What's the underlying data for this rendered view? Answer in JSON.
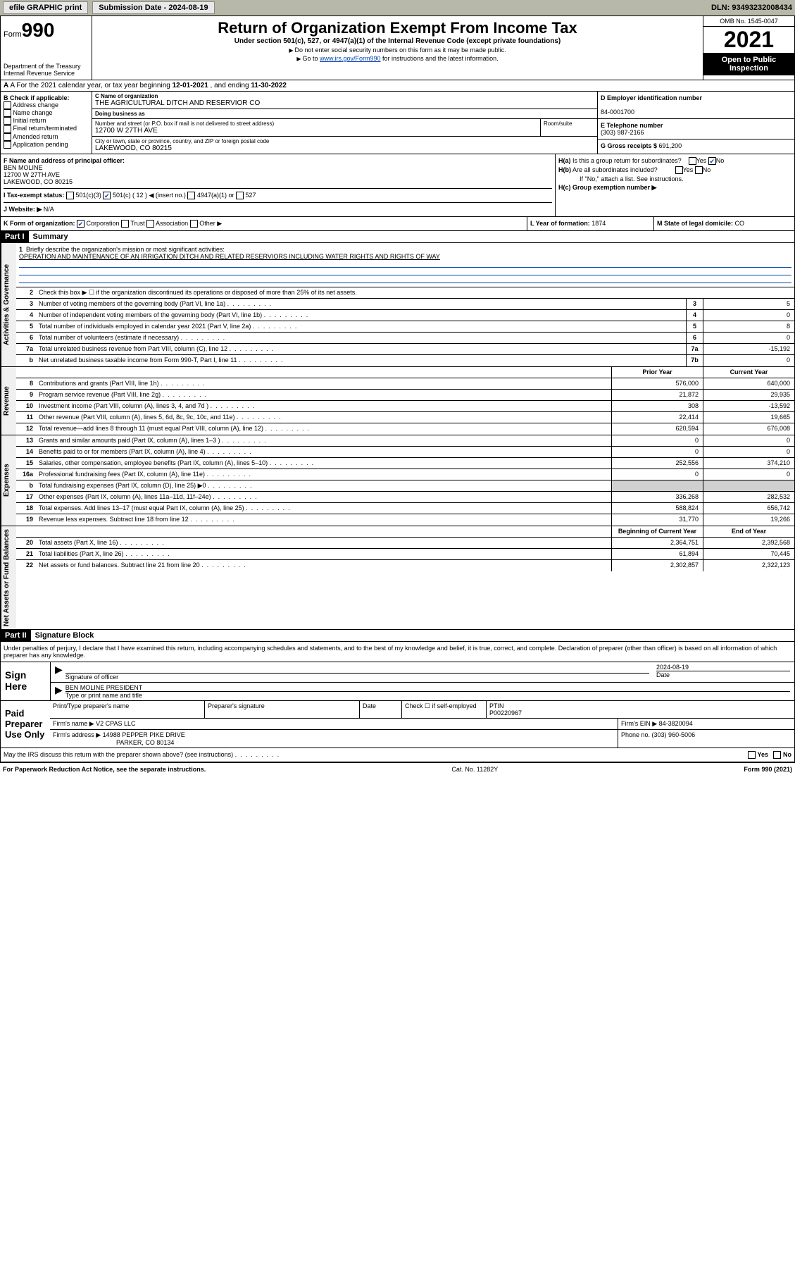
{
  "topbar": {
    "efile": "efile GRAPHIC print",
    "submission_label": "Submission Date - ",
    "submission_date": "2024-08-19",
    "dln_label": "DLN: ",
    "dln": "93493232008434"
  },
  "header": {
    "form_word": "Form",
    "form_num": "990",
    "dept1": "Department of the Treasury",
    "dept2": "Internal Revenue Service",
    "title": "Return of Organization Exempt From Income Tax",
    "subtitle": "Under section 501(c), 527, or 4947(a)(1) of the Internal Revenue Code (except private foundations)",
    "note1": "Do not enter social security numbers on this form as it may be made public.",
    "note2_pre": "Go to ",
    "note2_link": "www.irs.gov/Form990",
    "note2_post": " for instructions and the latest information.",
    "omb": "OMB No. 1545-0047",
    "year": "2021",
    "inspection1": "Open to Public",
    "inspection2": "Inspection"
  },
  "row_a": {
    "text_pre": "A For the 2021 calendar year, or tax year beginning ",
    "begin": "12-01-2021",
    "text_mid": " , and ending ",
    "end": "11-30-2022"
  },
  "section_b": {
    "b_label": "B Check if applicable:",
    "opts": [
      "Address change",
      "Name change",
      "Initial return",
      "Final return/terminated",
      "Amended return",
      "Application pending"
    ],
    "c_label": "C Name of organization",
    "org_name": "THE AGRICULTURAL DITCH AND RESERVIOR CO",
    "dba_label": "Doing business as",
    "dba": "",
    "street_label": "Number and street (or P.O. box if mail is not delivered to street address)",
    "street": "12700 W 27TH AVE",
    "room_label": "Room/suite",
    "city_label": "City or town, state or province, country, and ZIP or foreign postal code",
    "city": "LAKEWOOD, CO  80215",
    "d_label": "D Employer identification number",
    "ein": "84-0001700",
    "e_label": "E Telephone number",
    "phone": "(303) 987-2166",
    "g_label": "G Gross receipts $ ",
    "gross": "691,200"
  },
  "fgh": {
    "f_label": "F Name and address of principal officer:",
    "officer_name": "BEN MOLINE",
    "officer_addr1": "12700 W 27TH AVE",
    "officer_addr2": "LAKEWOOD, CO  80215",
    "i_label": "I Tax-exempt status:",
    "i_501c3": "501(c)(3)",
    "i_501c": "501(c) ( 12 ) ◀ (insert no.)",
    "i_4947": "4947(a)(1) or",
    "i_527": "527",
    "j_label": "J Website: ▶",
    "website": "N/A",
    "ha_label": "H(a) Is this a group return for subordinates?",
    "hb_label": "H(b) Are all subordinates included?",
    "hb_note": "If \"No,\" attach a list. See instructions.",
    "hc_label": "H(c) Group exemption number ▶",
    "yes": "Yes",
    "no": "No"
  },
  "row_k": {
    "k_label": "K Form of organization:",
    "k_corp": "Corporation",
    "k_trust": "Trust",
    "k_assoc": "Association",
    "k_other": "Other ▶",
    "l_label": "L Year of formation: ",
    "l_val": "1874",
    "m_label": "M State of legal domicile: ",
    "m_val": "CO"
  },
  "part1": {
    "header": "Part I",
    "title": "Summary",
    "line1_label": "Briefly describe the organization's mission or most significant activities:",
    "mission": "OPERATION AND MAINTENANCE OF AN IRRIGATION DITCH AND RELATED RESERVIORS INCLUDING WATER RIGHTS AND RIGHTS OF WAY",
    "line2": "Check this box ▶ ☐ if the organization discontinued its operations or disposed of more than 25% of its net assets.",
    "vlabels": [
      "Activities & Governance",
      "Revenue",
      "Expenses",
      "Net Assets or Fund Balances"
    ],
    "gov_lines": [
      {
        "n": "3",
        "d": "Number of voting members of the governing body (Part VI, line 1a)",
        "b": "3",
        "v": "5"
      },
      {
        "n": "4",
        "d": "Number of independent voting members of the governing body (Part VI, line 1b)",
        "b": "4",
        "v": "0"
      },
      {
        "n": "5",
        "d": "Total number of individuals employed in calendar year 2021 (Part V, line 2a)",
        "b": "5",
        "v": "8"
      },
      {
        "n": "6",
        "d": "Total number of volunteers (estimate if necessary)",
        "b": "6",
        "v": "0"
      },
      {
        "n": "7a",
        "d": "Total unrelated business revenue from Part VIII, column (C), line 12",
        "b": "7a",
        "v": "-15,192"
      },
      {
        "n": "b",
        "d": "Net unrelated business taxable income from Form 990-T, Part I, line 11",
        "b": "7b",
        "v": "0"
      }
    ],
    "col_prior": "Prior Year",
    "col_current": "Current Year",
    "col_begin": "Beginning of Current Year",
    "col_end": "End of Year",
    "rev_lines": [
      {
        "n": "8",
        "d": "Contributions and grants (Part VIII, line 1h)",
        "p": "576,000",
        "c": "640,000"
      },
      {
        "n": "9",
        "d": "Program service revenue (Part VIII, line 2g)",
        "p": "21,872",
        "c": "29,935"
      },
      {
        "n": "10",
        "d": "Investment income (Part VIII, column (A), lines 3, 4, and 7d )",
        "p": "308",
        "c": "-13,592"
      },
      {
        "n": "11",
        "d": "Other revenue (Part VIII, column (A), lines 5, 6d, 8c, 9c, 10c, and 11e)",
        "p": "22,414",
        "c": "19,665"
      },
      {
        "n": "12",
        "d": "Total revenue—add lines 8 through 11 (must equal Part VIII, column (A), line 12)",
        "p": "620,594",
        "c": "676,008"
      }
    ],
    "exp_lines": [
      {
        "n": "13",
        "d": "Grants and similar amounts paid (Part IX, column (A), lines 1–3 )",
        "p": "0",
        "c": "0"
      },
      {
        "n": "14",
        "d": "Benefits paid to or for members (Part IX, column (A), line 4)",
        "p": "0",
        "c": "0"
      },
      {
        "n": "15",
        "d": "Salaries, other compensation, employee benefits (Part IX, column (A), lines 5–10)",
        "p": "252,556",
        "c": "374,210"
      },
      {
        "n": "16a",
        "d": "Professional fundraising fees (Part IX, column (A), line 11e)",
        "p": "0",
        "c": "0"
      },
      {
        "n": "b",
        "d": "Total fundraising expenses (Part IX, column (D), line 25) ▶0",
        "p": "",
        "c": "",
        "shaded": true
      },
      {
        "n": "17",
        "d": "Other expenses (Part IX, column (A), lines 11a–11d, 11f–24e)",
        "p": "336,268",
        "c": "282,532"
      },
      {
        "n": "18",
        "d": "Total expenses. Add lines 13–17 (must equal Part IX, column (A), line 25)",
        "p": "588,824",
        "c": "656,742"
      },
      {
        "n": "19",
        "d": "Revenue less expenses. Subtract line 18 from line 12",
        "p": "31,770",
        "c": "19,266"
      }
    ],
    "net_lines": [
      {
        "n": "20",
        "d": "Total assets (Part X, line 16)",
        "p": "2,364,751",
        "c": "2,392,568"
      },
      {
        "n": "21",
        "d": "Total liabilities (Part X, line 26)",
        "p": "61,894",
        "c": "70,445"
      },
      {
        "n": "22",
        "d": "Net assets or fund balances. Subtract line 21 from line 20",
        "p": "2,302,857",
        "c": "2,322,123"
      }
    ]
  },
  "part2": {
    "header": "Part II",
    "title": "Signature Block",
    "intro": "Under penalties of perjury, I declare that I have examined this return, including accompanying schedules and statements, and to the best of my knowledge and belief, it is true, correct, and complete. Declaration of preparer (other than officer) is based on all information of which preparer has any knowledge.",
    "sign_here": "Sign Here",
    "sig_officer": "Signature of officer",
    "sig_date_label": "Date",
    "sig_date": "2024-08-19",
    "officer_name": "BEN MOLINE PRESIDENT",
    "type_name": "Type or print name and title",
    "paid_prep": "Paid Preparer Use Only",
    "prep_name_label": "Print/Type preparer's name",
    "prep_sig_label": "Preparer's signature",
    "date_label": "Date",
    "check_if": "Check ☐ if self-employed",
    "ptin_label": "PTIN",
    "ptin": "P00220967",
    "firm_name_label": "Firm's name    ▶",
    "firm_name": "V2 CPAS LLC",
    "firm_ein_label": "Firm's EIN ▶",
    "firm_ein": "84-3820094",
    "firm_addr_label": "Firm's address ▶",
    "firm_addr1": "14988 PEPPER PIKE DRIVE",
    "firm_addr2": "PARKER, CO  80134",
    "phone_label": "Phone no. ",
    "phone": "(303) 960-5006",
    "may_irs": "May the IRS discuss this return with the preparer shown above? (see instructions)"
  },
  "footer": {
    "left": "For Paperwork Reduction Act Notice, see the separate instructions.",
    "mid": "Cat. No. 11282Y",
    "right": "Form 990 (2021)"
  }
}
